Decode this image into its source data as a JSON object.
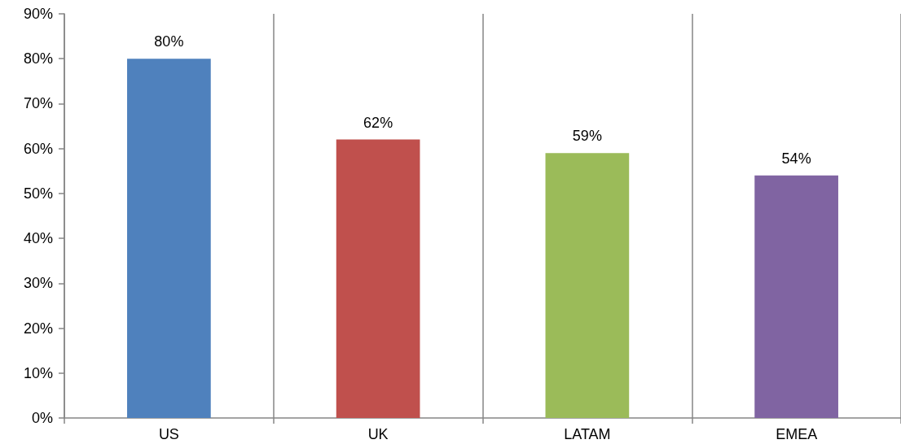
{
  "chart_data": {
    "type": "bar",
    "categories": [
      "US",
      "UK",
      "LATAM",
      "EMEA"
    ],
    "values": [
      80,
      62,
      59,
      54
    ],
    "colors": [
      "#4f81bd",
      "#c0504d",
      "#9bbb59",
      "#8064a2"
    ],
    "value_labels": [
      "80%",
      "62%",
      "59%",
      "54%"
    ],
    "ylim": [
      0,
      90
    ],
    "yticks": [
      {
        "value": 0,
        "label": "0%"
      },
      {
        "value": 10,
        "label": "10%"
      },
      {
        "value": 20,
        "label": "20%"
      },
      {
        "value": 30,
        "label": "30%"
      },
      {
        "value": 40,
        "label": "40%"
      },
      {
        "value": 50,
        "label": "50%"
      },
      {
        "value": 60,
        "label": "60%"
      },
      {
        "value": 70,
        "label": "70%"
      },
      {
        "value": 80,
        "label": "80%"
      },
      {
        "value": 90,
        "label": "90%"
      }
    ],
    "grid": "x"
  }
}
